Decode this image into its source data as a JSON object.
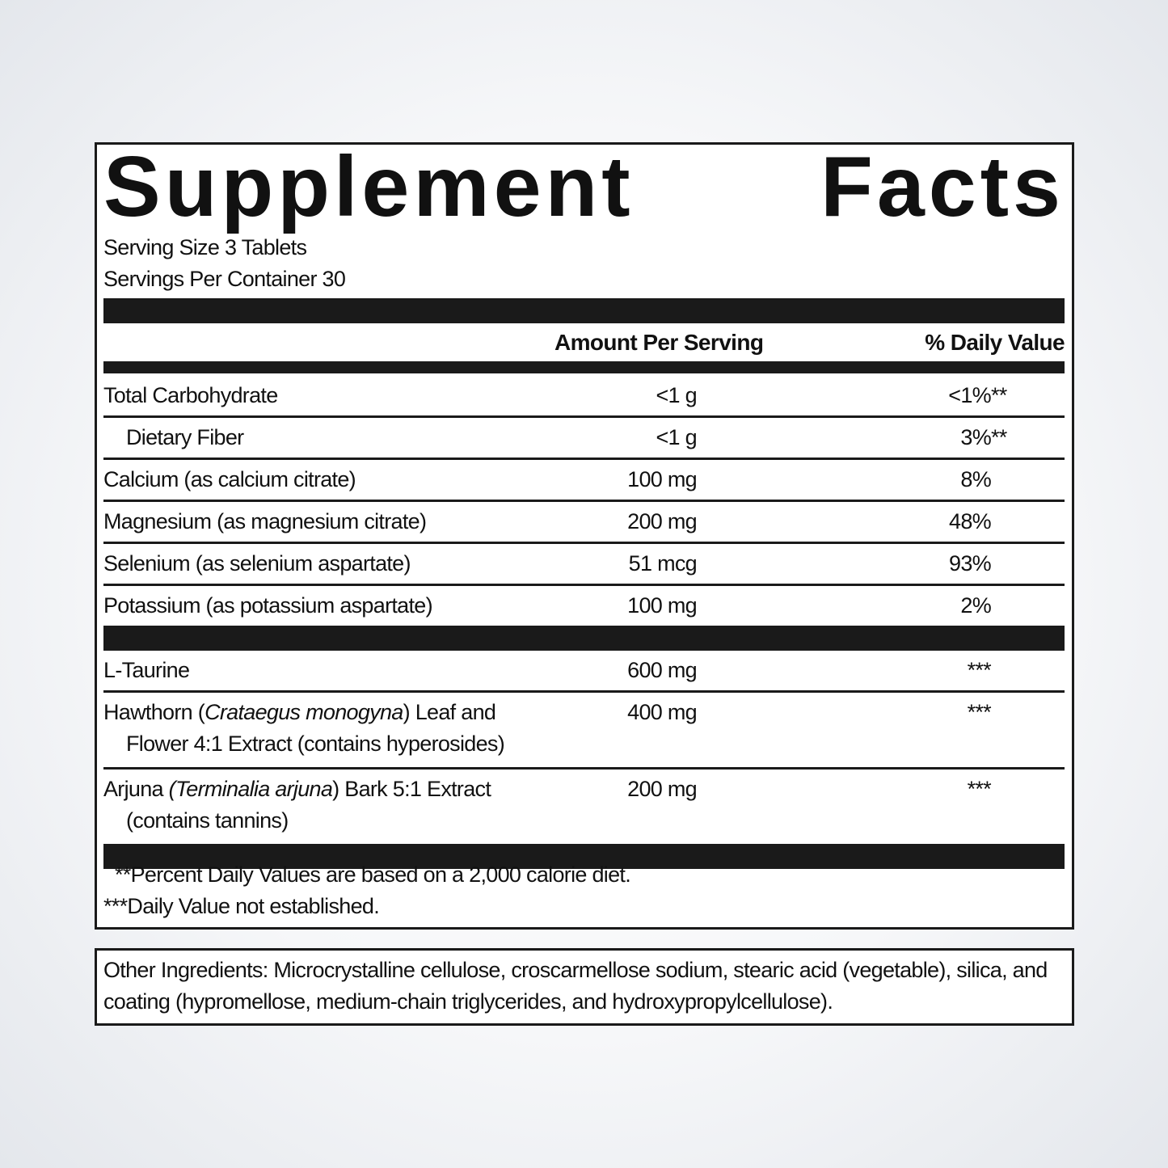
{
  "header": {
    "title": "Supplement Facts",
    "serving_size": "Serving Size 3 Tablets",
    "servings_per_container": "Servings Per Container 30"
  },
  "table": {
    "columns": [
      "Amount Per Serving",
      "% Daily Value"
    ],
    "groups": [
      {
        "rows": [
          {
            "name": [
              [
                {
                  "text": "Total Carbohydrate"
                }
              ]
            ],
            "amount": "<1 g",
            "dv": "<1%",
            "dv_note": "**"
          },
          {
            "name": [
              [
                {
                  "text": "Dietary Fiber"
                }
              ]
            ],
            "indent": true,
            "amount": "<1 g",
            "dv": "3%",
            "dv_note": "**"
          },
          {
            "name": [
              [
                {
                  "text": "Calcium (as calcium citrate)"
                }
              ]
            ],
            "amount": "100 mg",
            "dv": "8%"
          },
          {
            "name": [
              [
                {
                  "text": "Magnesium (as magnesium citrate)"
                }
              ]
            ],
            "amount": "200 mg",
            "dv": "48%"
          },
          {
            "name": [
              [
                {
                  "text": "Selenium (as selenium aspartate)"
                }
              ]
            ],
            "amount": "51 mcg",
            "dv": "93%"
          },
          {
            "name": [
              [
                {
                  "text": "Potassium (as potassium aspartate)"
                }
              ]
            ],
            "amount": "100 mg",
            "dv": "2%"
          }
        ]
      },
      {
        "rows": [
          {
            "name": [
              [
                {
                  "text": "L-Taurine"
                }
              ]
            ],
            "amount": "600 mg",
            "dv": "***"
          },
          {
            "name": [
              [
                {
                  "text": "Hawthorn ("
                },
                {
                  "text": "Crataegus monogyna",
                  "italic": true
                },
                {
                  "text": ") Leaf and"
                }
              ],
              [
                {
                  "text": "Flower 4:1 Extract (contains hyperosides)"
                }
              ]
            ],
            "amount": "400 mg",
            "dv": "***"
          },
          {
            "name": [
              [
                {
                  "text": "Arjuna "
                },
                {
                  "text": "(Terminalia arjuna",
                  "italic": true
                },
                {
                  "text": ") Bark 5:1 Extract"
                }
              ],
              [
                {
                  "text": "(contains tannins)"
                }
              ]
            ],
            "amount": "200 mg",
            "dv": "***"
          }
        ]
      }
    ]
  },
  "footnotes": [
    "**Percent Daily Values are based on a 2,000 calorie diet.",
    "***Daily Value not established."
  ],
  "other_ingredients": "Other Ingredients: Microcrystalline cellulose, croscarmellose sodium, stearic acid (vegetable), silica, and coating (hypromellose, medium-chain triglycerides, and hydroxypropylcellulose)."
}
